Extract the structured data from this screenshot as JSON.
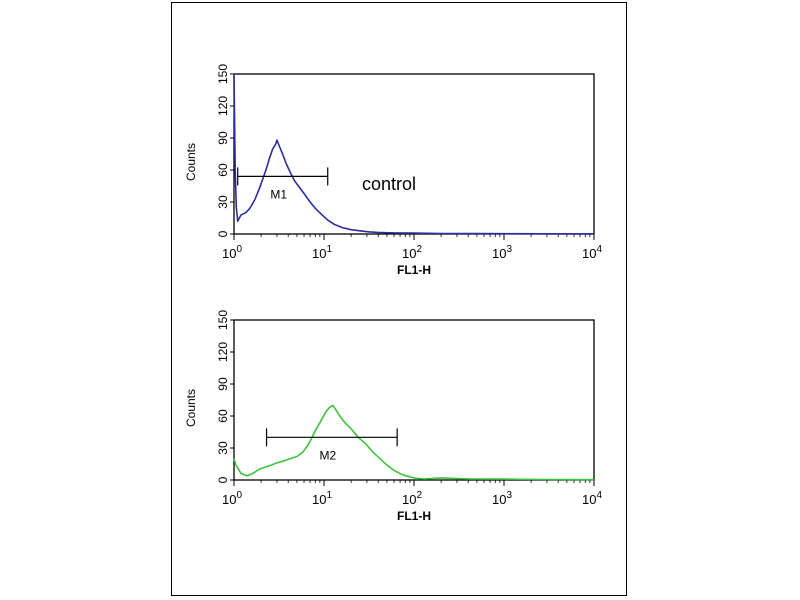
{
  "colors": {
    "frame": "#000000",
    "axis": "#000000",
    "control": "#2a2fa0",
    "sample": "#3cc43c"
  },
  "chart_data": [
    {
      "type": "line",
      "title": "",
      "annotation": "control",
      "xlabel": "FL1-H",
      "ylabel": "Counts",
      "xscale": "log",
      "xlim": [
        1,
        10000
      ],
      "ylim": [
        0,
        150
      ],
      "yticks": [
        "0",
        "30",
        "60",
        "90",
        "120",
        "150"
      ],
      "xticks": [
        {
          "base": "10",
          "exp": "0"
        },
        {
          "base": "10",
          "exp": "1"
        },
        {
          "base": "10",
          "exp": "2"
        },
        {
          "base": "10",
          "exp": "3"
        },
        {
          "base": "10",
          "exp": "4"
        }
      ],
      "color": "#2a2fa0",
      "marker": {
        "label": "M1",
        "x_range": [
          1.1,
          11
        ]
      },
      "series": [
        {
          "x": [
            1,
            1.03,
            1.06,
            1.1,
            1.2,
            1.35,
            1.5,
            1.7,
            1.9,
            2.1,
            2.3,
            2.5,
            2.7,
            2.9,
            3.0,
            3.2,
            3.5,
            3.8,
            4.2,
            4.7,
            5.3,
            6,
            7,
            8,
            9.5,
            11,
            13,
            16,
            20,
            25,
            32,
            40,
            60,
            100,
            200,
            500,
            1000,
            3000,
            10000
          ],
          "y": [
            150,
            60,
            25,
            12,
            18,
            20,
            24,
            32,
            42,
            52,
            62,
            72,
            80,
            84,
            88,
            82,
            74,
            66,
            58,
            50,
            44,
            38,
            30,
            24,
            18,
            13,
            9,
            6,
            4,
            3,
            2,
            1.5,
            1,
            0.8,
            0.5,
            0.4,
            0.3,
            0.2,
            0.2
          ]
        }
      ]
    },
    {
      "type": "line",
      "title": "",
      "xlabel": "FL1-H",
      "ylabel": "Counts",
      "xscale": "log",
      "xlim": [
        1,
        10000
      ],
      "ylim": [
        0,
        150
      ],
      "yticks": [
        "0",
        "30",
        "60",
        "90",
        "120",
        "150"
      ],
      "xticks": [
        {
          "base": "10",
          "exp": "0"
        },
        {
          "base": "10",
          "exp": "1"
        },
        {
          "base": "10",
          "exp": "2"
        },
        {
          "base": "10",
          "exp": "3"
        },
        {
          "base": "10",
          "exp": "4"
        }
      ],
      "color": "#3cc43c",
      "marker": {
        "label": "M2",
        "x_range": [
          2.3,
          65
        ]
      },
      "series": [
        {
          "x": [
            1,
            1.05,
            1.2,
            1.4,
            1.6,
            1.9,
            2.2,
            2.6,
            3,
            3.6,
            4.2,
            5,
            5.8,
            6.8,
            8,
            9.3,
            10.5,
            11.5,
            12.5,
            13.5,
            15,
            17,
            20,
            24,
            29,
            35,
            42,
            50,
            60,
            70,
            80,
            90,
            100,
            110,
            130,
            200,
            400,
            1000,
            3000,
            10000
          ],
          "y": [
            20,
            14,
            6,
            4,
            6,
            10,
            12,
            14,
            16,
            18,
            20,
            22,
            26,
            34,
            46,
            56,
            64,
            68,
            70,
            66,
            60,
            54,
            48,
            40,
            34,
            26,
            20,
            14,
            9,
            6,
            4,
            3,
            2,
            1.5,
            1,
            2,
            1,
            0.8,
            0.5,
            0.3
          ]
        }
      ]
    }
  ]
}
